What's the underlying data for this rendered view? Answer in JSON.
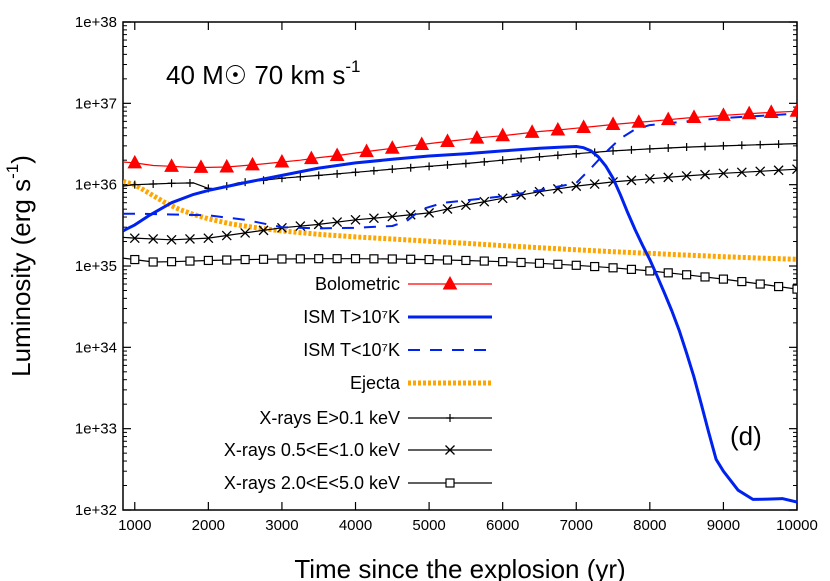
{
  "chart_data": {
    "type": "line",
    "annotation": "40 M☉  70 km s",
    "annotation_sup": "-1",
    "panel_label": "(d)",
    "xlabel": "Time since the explosion (yr)",
    "ylabel": "Luminosity (erg s",
    "ylabel_sup": "-1",
    "ylabel_end": ")",
    "xlim": [
      840,
      10000
    ],
    "ylim": [
      1e+32,
      1e+38
    ],
    "yscale": "log",
    "xticks": [
      1000,
      2000,
      3000,
      4000,
      5000,
      6000,
      7000,
      8000,
      9000,
      10000
    ],
    "xtick_labels": [
      "1000",
      "2000",
      "3000",
      "4000",
      "5000",
      "6000",
      "7000",
      "8000",
      "9000",
      "10000"
    ],
    "yticks": [
      1e+32,
      1e+33,
      1e+34,
      1e+35,
      1e+36,
      1e+37,
      1e+38
    ],
    "ytick_labels": [
      "1e+32",
      "1e+33",
      "1e+34",
      "1e+35",
      "1e+36",
      "1e+37",
      "1e+38"
    ],
    "grid": false,
    "legend_position": "bottom-left",
    "series": [
      {
        "name": "Bolometric",
        "color": "#ff0000",
        "style": "solid",
        "marker": "triangle",
        "x": [
          840,
          1000,
          1250,
          1500,
          1750,
          2000,
          2250,
          2500,
          2750,
          3000,
          3250,
          3500,
          3750,
          4000,
          4250,
          4500,
          4750,
          5000,
          5250,
          5500,
          5750,
          6000,
          6250,
          6500,
          6750,
          7000,
          7250,
          7500,
          7750,
          8000,
          8250,
          8500,
          8750,
          9000,
          9250,
          9500,
          9750,
          10000
        ],
        "y": [
          1.9e+36,
          1.85e+36,
          1.72e+36,
          1.68e+36,
          1.63e+36,
          1.63e+36,
          1.65e+36,
          1.72e+36,
          1.8e+36,
          1.9e+36,
          2e+36,
          2.15e+36,
          2.28e+36,
          2.45e+36,
          2.62e+36,
          2.8e+36,
          3e+36,
          3.2e+36,
          3.4e+36,
          3.6e+36,
          3.82e+36,
          4e+36,
          4.25e+36,
          4.5e+36,
          4.7e+36,
          4.95e+36,
          5.2e+36,
          5.5e+36,
          5.75e+36,
          6e+36,
          6.3e+36,
          6.6e+36,
          6.85e+36,
          7.1e+36,
          7.35e+36,
          7.6e+36,
          7.8e+36,
          8e+36
        ],
        "markers_x": [
          1000,
          1500,
          1900,
          2250,
          2600,
          3000,
          3400,
          3750,
          4150,
          4500,
          4900,
          5250,
          5650,
          6000,
          6400,
          6750,
          7100,
          7500,
          7850,
          8250,
          8600,
          9000,
          9350,
          9650,
          10000
        ]
      },
      {
        "name": "ISM T>10⁷K",
        "color": "#0022ee",
        "style": "solid-thick",
        "marker": "none",
        "x": [
          840,
          1000,
          1200,
          1500,
          1800,
          2000,
          2500,
          3000,
          3500,
          4000,
          4500,
          5000,
          5500,
          6000,
          6500,
          6800,
          7000,
          7100,
          7200,
          7300,
          7400,
          7500,
          7600,
          7700,
          7800,
          7900,
          8000,
          8100,
          8200,
          8300,
          8400,
          8500,
          8600,
          8700,
          8800,
          8900,
          9000,
          9200,
          9400,
          9600,
          9800,
          10000
        ],
        "y": [
          2.7e+35,
          3.2e+35,
          4.2e+35,
          6e+35,
          7.6e+35,
          8.5e+35,
          1.06e+36,
          1.3e+36,
          1.6e+36,
          1.85e+36,
          2.05e+36,
          2.25e+36,
          2.4e+36,
          2.6e+36,
          2.8e+36,
          2.9e+36,
          2.95e+36,
          2.85e+36,
          2.6e+36,
          2.2e+36,
          1.7e+36,
          1.2e+36,
          7.5e+35,
          4.5e+35,
          2.8e+35,
          1.8e+35,
          1.2e+35,
          7.5e+34,
          4.6e+34,
          2.8e+34,
          1.6e+34,
          8.5e+33,
          4.3e+33,
          2e+33,
          9e+32,
          4.2e+32,
          3e+32,
          1.75e+32,
          1.35e+32,
          1.36e+32,
          1.38e+32,
          1.25e+32
        ]
      },
      {
        "name": "ISM T<10⁷K",
        "color": "#0022ee",
        "style": "dashed",
        "marker": "none",
        "x": [
          840,
          1000,
          1500,
          2000,
          2500,
          3000,
          3500,
          4000,
          4500,
          4700,
          4900,
          5200,
          5500,
          6000,
          6500,
          7000,
          7200,
          7400,
          7600,
          7800,
          8000,
          8500,
          9000,
          9500,
          10000
        ],
        "y": [
          4.4e+35,
          4.4e+35,
          4.3e+35,
          4.2e+35,
          3.7e+35,
          3e+35,
          2.9e+35,
          2.95e+35,
          3.1e+35,
          3.6e+35,
          5e+35,
          6e+35,
          6.4e+35,
          7.2e+35,
          8.5e+35,
          1.05e+36,
          1.6e+36,
          2.5e+36,
          3.7e+36,
          4.8e+36,
          5.4e+36,
          6e+36,
          6.6e+36,
          7e+36,
          7.5e+36
        ]
      },
      {
        "name": "Ejecta",
        "color": "#ffa500",
        "style": "dotted-thick",
        "marker": "none",
        "x": [
          840,
          1000,
          1200,
          1400,
          1600,
          1800,
          2000,
          2300,
          2600,
          3000,
          3500,
          4000,
          4500,
          5000,
          5500,
          6000,
          6500,
          7000,
          7500,
          8000,
          8500,
          9000,
          9500,
          10000
        ],
        "y": [
          1.1e+36,
          1e+36,
          7.8e+35,
          6.1e+35,
          5e+35,
          4.3e+35,
          3.8e+35,
          3.3e+35,
          3e+35,
          2.7e+35,
          2.45e+35,
          2.28e+35,
          2.15e+35,
          2.02e+35,
          1.9e+35,
          1.78e+35,
          1.68e+35,
          1.58e+35,
          1.5e+35,
          1.43e+35,
          1.36e+35,
          1.3e+35,
          1.25e+35,
          1.21e+35
        ]
      },
      {
        "name": "X-rays E>0.1 keV",
        "color": "#000000",
        "style": "solid",
        "marker": "plus",
        "x": [
          840,
          1000,
          1250,
          1500,
          1800,
          2000,
          2100,
          2400,
          2700,
          3000,
          3500,
          4000,
          4500,
          5000,
          5500,
          6000,
          6500,
          7000,
          7500,
          8000,
          8500,
          9000,
          9500,
          10000
        ],
        "y": [
          9.6e+35,
          1e+36,
          1.02e+36,
          1.04e+36,
          1.05e+36,
          9e+35,
          8.8e+35,
          1.05e+36,
          1.12e+36,
          1.2e+36,
          1.3e+36,
          1.42e+36,
          1.55e+36,
          1.68e+36,
          1.82e+36,
          2e+36,
          2.2e+36,
          2.4e+36,
          2.6e+36,
          2.75e+36,
          2.9e+36,
          3e+36,
          3.1e+36,
          3.2e+36
        ],
        "markers_x": [
          1000,
          1250,
          1500,
          1750,
          2000,
          2250,
          2500,
          2750,
          3000,
          3250,
          3500,
          3750,
          4000,
          4250,
          4500,
          4750,
          5000,
          5250,
          5500,
          5750,
          6000,
          6250,
          6500,
          6750,
          7000,
          7250,
          7500,
          7750,
          8000,
          8250,
          8500,
          8750,
          9000,
          9250,
          9500,
          9750,
          10000
        ]
      },
      {
        "name": "X-rays 0.5<E<1.0 keV",
        "color": "#000000",
        "style": "solid",
        "marker": "cross",
        "x": [
          840,
          1000,
          1500,
          2000,
          2500,
          3000,
          3500,
          4000,
          4500,
          5000,
          5500,
          6000,
          6500,
          7000,
          7500,
          8000,
          8500,
          9000,
          9500,
          10000
        ],
        "y": [
          2.25e+35,
          2.2e+35,
          2.1e+35,
          2.2e+35,
          2.55e+35,
          2.95e+35,
          3.25e+35,
          3.7e+35,
          4.05e+35,
          4.5e+35,
          5.6e+35,
          6.8e+35,
          8.2e+35,
          9.6e+35,
          1.08e+36,
          1.18e+36,
          1.28e+36,
          1.38e+36,
          1.46e+36,
          1.55e+36
        ],
        "markers_x": [
          1000,
          1250,
          1500,
          1750,
          2000,
          2250,
          2500,
          2750,
          3000,
          3250,
          3500,
          3750,
          4000,
          4250,
          4500,
          4750,
          5000,
          5250,
          5500,
          5750,
          6000,
          6250,
          6500,
          6750,
          7000,
          7250,
          7500,
          7750,
          8000,
          8250,
          8500,
          8750,
          9000,
          9250,
          9500,
          9750,
          10000
        ]
      },
      {
        "name": "X-rays 2.0<E<5.0 keV",
        "color": "#000000",
        "style": "solid",
        "marker": "square",
        "x": [
          840,
          1000,
          1250,
          1500,
          2000,
          2500,
          3000,
          3500,
          4000,
          4500,
          5000,
          5500,
          6000,
          6500,
          7000,
          7500,
          8000,
          8500,
          9000,
          9500,
          10000
        ],
        "y": [
          1.25e+35,
          1.2e+35,
          1.12e+35,
          1.13e+35,
          1.17e+35,
          1.2e+35,
          1.22e+35,
          1.23e+35,
          1.23e+35,
          1.22e+35,
          1.2e+35,
          1.17e+35,
          1.13e+35,
          1.08e+35,
          1.02e+35,
          9.5e+34,
          8.7e+34,
          7.8e+34,
          6.9e+34,
          6e+34,
          5.2e+34
        ],
        "markers_x": [
          1000,
          1250,
          1500,
          1750,
          2000,
          2250,
          2500,
          2750,
          3000,
          3250,
          3500,
          3750,
          4000,
          4250,
          4500,
          4750,
          5000,
          5250,
          5500,
          5750,
          6000,
          6250,
          6500,
          6750,
          7000,
          7250,
          7500,
          7750,
          8000,
          8250,
          8500,
          8750,
          9000,
          9250,
          9500,
          9750,
          10000
        ]
      }
    ]
  }
}
